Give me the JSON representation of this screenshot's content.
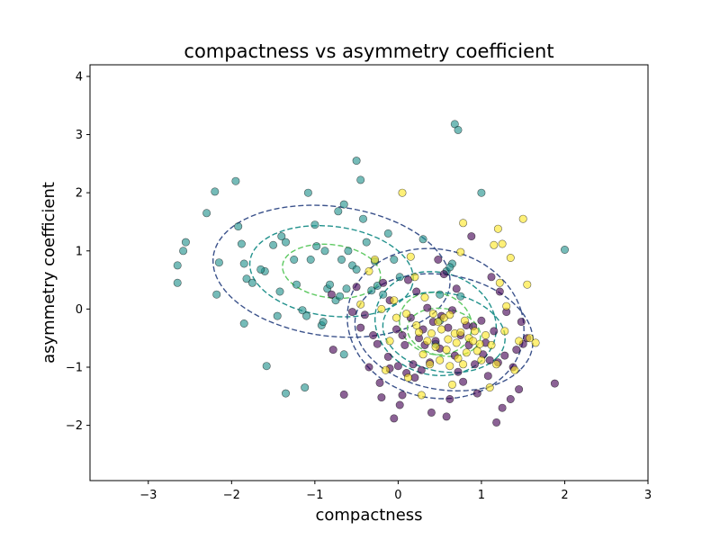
{
  "chart_data": {
    "type": "scatter",
    "title": "compactness vs asymmetry coefficient",
    "xlabel": "compactness",
    "ylabel": "asymmetry coefficient",
    "xlim": [
      -3.7,
      3.0
    ],
    "ylim": [
      -2.95,
      4.2
    ],
    "x_ticks": [
      -3,
      -2,
      -1,
      0,
      1,
      2,
      3
    ],
    "x_tick_labels": [
      "−3",
      "−2",
      "−1",
      "0",
      "1",
      "2",
      "3"
    ],
    "y_ticks": [
      -2,
      -1,
      0,
      1,
      2,
      3,
      4
    ],
    "y_tick_labels": [
      "−2",
      "−1",
      "0",
      "1",
      "2",
      "3",
      "4"
    ],
    "grid": false,
    "legend": "none",
    "colors": {
      "teal": "#21918c",
      "purple": "#440154",
      "yellow": "#fde725",
      "ring_outer": "#3b528b",
      "ring_mid": "#21918c",
      "ring_inner": "#5ec962"
    },
    "series": [
      {
        "color": "#21918c",
        "points": [
          [
            -2.65,
            0.75
          ],
          [
            -2.65,
            0.45
          ],
          [
            -2.55,
            1.15
          ],
          [
            -2.58,
            1.0
          ],
          [
            -2.3,
            1.65
          ],
          [
            -2.2,
            2.02
          ],
          [
            -2.15,
            0.8
          ],
          [
            -2.18,
            0.25
          ],
          [
            -1.95,
            2.2
          ],
          [
            -1.92,
            1.42
          ],
          [
            -1.88,
            1.12
          ],
          [
            -1.85,
            0.78
          ],
          [
            -1.82,
            0.52
          ],
          [
            -1.85,
            -0.25
          ],
          [
            -1.75,
            0.45
          ],
          [
            -1.6,
            0.65
          ],
          [
            -1.58,
            -0.98
          ],
          [
            -1.5,
            1.1
          ],
          [
            -1.45,
            -0.12
          ],
          [
            -1.42,
            0.3
          ],
          [
            -1.4,
            1.25
          ],
          [
            -1.35,
            1.15
          ],
          [
            -1.35,
            -1.45
          ],
          [
            -1.25,
            0.85
          ],
          [
            -1.22,
            0.42
          ],
          [
            -1.15,
            -0.02
          ],
          [
            -1.12,
            -1.35
          ],
          [
            -1.1,
            -0.12
          ],
          [
            -1.08,
            2.0
          ],
          [
            -1.05,
            0.85
          ],
          [
            -1.0,
            1.45
          ],
          [
            -0.98,
            1.08
          ],
          [
            -0.92,
            -0.28
          ],
          [
            -0.9,
            -0.22
          ],
          [
            -0.88,
            1.0
          ],
          [
            -0.85,
            0.35
          ],
          [
            -0.82,
            0.42
          ],
          [
            -0.75,
            0.15
          ],
          [
            -0.72,
            1.68
          ],
          [
            -0.7,
            0.22
          ],
          [
            -0.68,
            0.85
          ],
          [
            -0.65,
            1.8
          ],
          [
            -0.62,
            0.35
          ],
          [
            -0.6,
            1.0
          ],
          [
            -0.55,
            0.75
          ],
          [
            -0.5,
            2.55
          ],
          [
            -0.5,
            0.68
          ],
          [
            -0.45,
            2.22
          ],
          [
            -0.42,
            1.55
          ],
          [
            -0.38,
            1.15
          ],
          [
            -0.32,
            0.32
          ],
          [
            -0.28,
            0.82
          ],
          [
            -0.25,
            0.4
          ],
          [
            -0.18,
            0.25
          ],
          [
            -0.12,
            1.3
          ],
          [
            -0.05,
            0.85
          ],
          [
            0.02,
            0.55
          ],
          [
            0.3,
            1.2
          ],
          [
            0.5,
            0.25
          ],
          [
            0.58,
            0.65
          ],
          [
            0.65,
            0.78
          ],
          [
            0.62,
            0.72
          ],
          [
            0.68,
            3.18
          ],
          [
            0.72,
            3.08
          ],
          [
            1.0,
            2.0
          ],
          [
            2.0,
            1.02
          ],
          [
            0.75,
            0.22
          ],
          [
            0.5,
            -0.2
          ],
          [
            0.45,
            -0.6
          ],
          [
            -0.65,
            -0.78
          ],
          [
            -1.65,
            0.68
          ]
        ]
      },
      {
        "color": "#440154",
        "points": [
          [
            -0.8,
            0.25
          ],
          [
            -0.78,
            -0.7
          ],
          [
            -0.65,
            -1.47
          ],
          [
            -0.55,
            -0.05
          ],
          [
            -0.5,
            0.38
          ],
          [
            -0.4,
            -0.1
          ],
          [
            -0.35,
            -1.0
          ],
          [
            -0.3,
            -0.45
          ],
          [
            -0.25,
            -0.6
          ],
          [
            -0.22,
            -1.27
          ],
          [
            -0.2,
            -1.52
          ],
          [
            -0.18,
            0.45
          ],
          [
            -0.12,
            -0.82
          ],
          [
            -0.1,
            -1.02
          ],
          [
            -0.05,
            -1.88
          ],
          [
            -0.02,
            -0.35
          ],
          [
            0.0,
            -0.98
          ],
          [
            0.02,
            -1.65
          ],
          [
            0.05,
            -1.48
          ],
          [
            0.08,
            -0.62
          ],
          [
            0.1,
            -1.1
          ],
          [
            0.12,
            0.5
          ],
          [
            0.15,
            -0.15
          ],
          [
            0.18,
            -0.95
          ],
          [
            0.2,
            -1.18
          ],
          [
            0.22,
            0.3
          ],
          [
            0.25,
            -0.5
          ],
          [
            0.28,
            -1.05
          ],
          [
            0.3,
            -0.35
          ],
          [
            0.32,
            -0.62
          ],
          [
            0.35,
            0.02
          ],
          [
            0.38,
            -0.92
          ],
          [
            0.4,
            -1.78
          ],
          [
            0.42,
            -0.22
          ],
          [
            0.45,
            -0.55
          ],
          [
            0.48,
            0.85
          ],
          [
            0.5,
            -0.68
          ],
          [
            0.52,
            -0.12
          ],
          [
            0.55,
            0.6
          ],
          [
            0.58,
            -1.85
          ],
          [
            0.6,
            -0.32
          ],
          [
            0.62,
            -1.55
          ],
          [
            0.65,
            -0.02
          ],
          [
            0.68,
            -0.8
          ],
          [
            0.7,
            0.35
          ],
          [
            0.72,
            -1.08
          ],
          [
            0.75,
            -0.45
          ],
          [
            0.78,
            -1.25
          ],
          [
            0.82,
            -0.28
          ],
          [
            0.85,
            -0.62
          ],
          [
            0.88,
            1.25
          ],
          [
            0.9,
            -0.3
          ],
          [
            0.92,
            -0.95
          ],
          [
            0.95,
            -1.45
          ],
          [
            1.0,
            -0.2
          ],
          [
            1.02,
            -0.78
          ],
          [
            1.05,
            -0.58
          ],
          [
            1.08,
            -1.15
          ],
          [
            1.1,
            -0.88
          ],
          [
            1.12,
            0.55
          ],
          [
            1.15,
            -0.38
          ],
          [
            1.18,
            -1.95
          ],
          [
            1.2,
            -0.92
          ],
          [
            1.22,
            0.3
          ],
          [
            1.25,
            -1.7
          ],
          [
            1.28,
            -0.8
          ],
          [
            1.3,
            -0.05
          ],
          [
            1.35,
            -1.55
          ],
          [
            1.38,
            -1.0
          ],
          [
            1.42,
            -0.7
          ],
          [
            1.45,
            -1.38
          ],
          [
            1.48,
            -0.22
          ],
          [
            1.5,
            -0.6
          ],
          [
            1.55,
            -0.5
          ],
          [
            1.88,
            -1.28
          ],
          [
            -0.1,
            0.15
          ],
          [
            0.05,
            -0.45
          ],
          [
            -0.45,
            -0.32
          ]
        ]
      },
      {
        "color": "#fde725",
        "points": [
          [
            -0.45,
            0.08
          ],
          [
            -0.35,
            0.65
          ],
          [
            -0.28,
            0.85
          ],
          [
            -0.2,
            0.0
          ],
          [
            -0.15,
            -1.05
          ],
          [
            -0.1,
            -0.55
          ],
          [
            -0.05,
            0.15
          ],
          [
            0.05,
            2.0
          ],
          [
            0.1,
            -0.08
          ],
          [
            0.12,
            -1.18
          ],
          [
            0.15,
            0.9
          ],
          [
            0.2,
            0.55
          ],
          [
            0.22,
            -0.28
          ],
          [
            0.25,
            -0.4
          ],
          [
            0.28,
            -1.48
          ],
          [
            0.3,
            -0.78
          ],
          [
            0.32,
            0.2
          ],
          [
            0.35,
            -0.55
          ],
          [
            0.38,
            -0.95
          ],
          [
            0.4,
            -0.42
          ],
          [
            0.42,
            -0.08
          ],
          [
            0.45,
            -0.65
          ],
          [
            0.48,
            -0.22
          ],
          [
            0.5,
            -0.88
          ],
          [
            0.52,
            -0.35
          ],
          [
            0.55,
            -0.15
          ],
          [
            0.58,
            -0.7
          ],
          [
            0.6,
            -0.52
          ],
          [
            0.62,
            -0.98
          ],
          [
            0.65,
            -1.3
          ],
          [
            0.68,
            -0.42
          ],
          [
            0.7,
            -0.58
          ],
          [
            0.72,
            -0.85
          ],
          [
            0.75,
            -0.4
          ],
          [
            0.78,
            -0.95
          ],
          [
            0.8,
            -0.2
          ],
          [
            0.82,
            -0.75
          ],
          [
            0.85,
            -0.5
          ],
          [
            0.9,
            -0.55
          ],
          [
            0.92,
            -0.38
          ],
          [
            0.95,
            -0.72
          ],
          [
            0.98,
            -0.6
          ],
          [
            1.0,
            -0.88
          ],
          [
            1.05,
            -0.45
          ],
          [
            1.1,
            -1.35
          ],
          [
            1.12,
            -0.62
          ],
          [
            1.15,
            1.1
          ],
          [
            1.18,
            -0.95
          ],
          [
            1.2,
            1.38
          ],
          [
            1.22,
            0.45
          ],
          [
            1.25,
            1.12
          ],
          [
            1.28,
            -0.38
          ],
          [
            1.3,
            0.05
          ],
          [
            1.35,
            0.88
          ],
          [
            1.4,
            -1.05
          ],
          [
            1.45,
            -0.55
          ],
          [
            1.5,
            1.55
          ],
          [
            1.55,
            0.42
          ],
          [
            1.58,
            -0.5
          ],
          [
            1.65,
            -0.58
          ],
          [
            0.78,
            1.48
          ],
          [
            0.75,
            0.98
          ],
          [
            0.62,
            -0.1
          ],
          [
            -0.02,
            -0.15
          ]
        ]
      }
    ],
    "ellipses": [
      {
        "cx": -0.8,
        "cy": 0.65,
        "rx": 1.45,
        "ry": 1.1,
        "angle": -0.3,
        "style": "outer"
      },
      {
        "cx": -0.8,
        "cy": 0.65,
        "rx": 1.0,
        "ry": 0.76,
        "angle": -0.3,
        "style": "mid"
      },
      {
        "cx": -0.8,
        "cy": 0.65,
        "rx": 0.6,
        "ry": 0.45,
        "angle": -0.3,
        "style": "inner"
      },
      {
        "cx": 0.45,
        "cy": -0.25,
        "rx": 1.05,
        "ry": 1.3,
        "angle": 0.2,
        "style": "outer"
      },
      {
        "cx": 0.45,
        "cy": -0.25,
        "rx": 0.72,
        "ry": 0.9,
        "angle": 0.2,
        "style": "mid"
      },
      {
        "cx": 0.45,
        "cy": -0.25,
        "rx": 0.43,
        "ry": 0.54,
        "angle": 0.2,
        "style": "inner"
      },
      {
        "cx": 0.55,
        "cy": -0.4,
        "rx": 1.12,
        "ry": 0.95,
        "angle": -0.6,
        "style": "outer"
      },
      {
        "cx": 0.55,
        "cy": -0.4,
        "rx": 0.77,
        "ry": 0.65,
        "angle": -0.6,
        "style": "mid"
      },
      {
        "cx": 0.55,
        "cy": -0.4,
        "rx": 0.46,
        "ry": 0.39,
        "angle": -0.6,
        "style": "inner"
      }
    ]
  }
}
